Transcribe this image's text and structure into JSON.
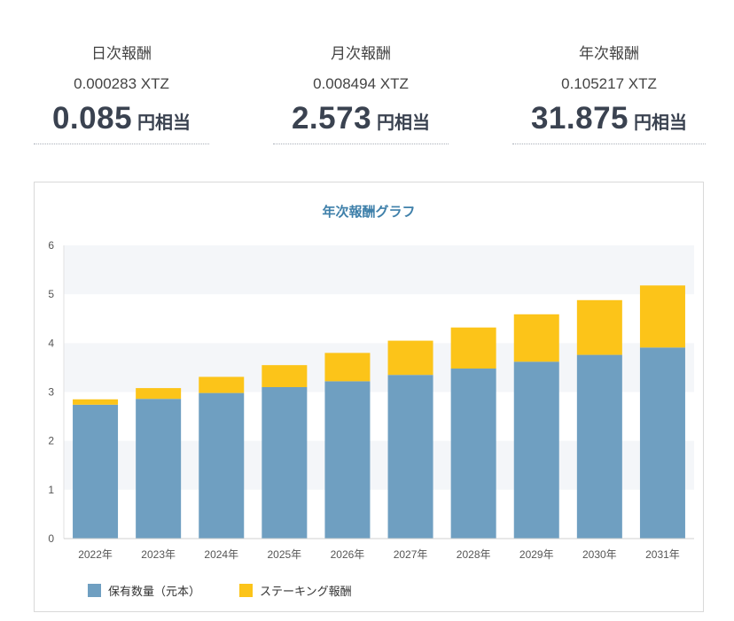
{
  "stats": [
    {
      "label": "日次報酬",
      "xtz": "0.000283 XTZ",
      "yen": "0.085",
      "suffix": "円相当"
    },
    {
      "label": "月次報酬",
      "xtz": "0.008494 XTZ",
      "yen": "2.573",
      "suffix": "円相当"
    },
    {
      "label": "年次報酬",
      "xtz": "0.105217 XTZ",
      "yen": "31.875",
      "suffix": "円相当"
    }
  ],
  "chart_data": {
    "type": "bar",
    "stacked": true,
    "title": "年次報酬グラフ",
    "categories": [
      "2022年",
      "2023年",
      "2024年",
      "2025年",
      "2026年",
      "2027年",
      "2028年",
      "2029年",
      "2030年",
      "2031年"
    ],
    "series": [
      {
        "name": "保有数量（元本）",
        "color": "#6f9fc1",
        "values": [
          2.74,
          2.86,
          2.98,
          3.1,
          3.22,
          3.35,
          3.48,
          3.62,
          3.76,
          3.91
        ]
      },
      {
        "name": "ステーキング報酬",
        "color": "#fcc419",
        "values": [
          0.11,
          0.22,
          0.33,
          0.45,
          0.58,
          0.7,
          0.84,
          0.97,
          1.12,
          1.27
        ]
      }
    ],
    "ylim": [
      0,
      6
    ],
    "yticks": [
      0,
      1,
      2,
      3,
      4,
      5,
      6
    ],
    "grid": "horizontal bands",
    "legend": "bottom-left"
  }
}
